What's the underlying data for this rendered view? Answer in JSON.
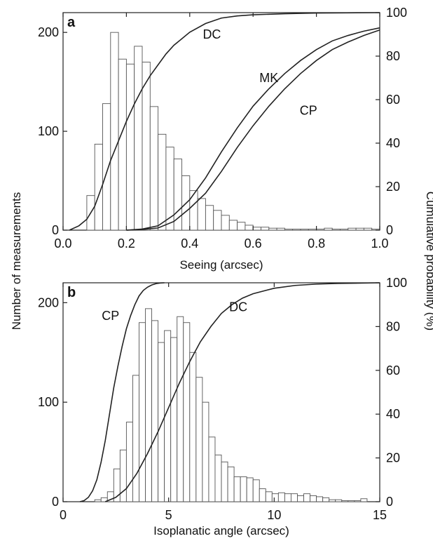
{
  "shared": {
    "left_axis_label": "Number of measurements",
    "right_axis_label": "Cumulative probability (%)"
  },
  "chart_data": [
    {
      "type": "bar",
      "panel": "a",
      "xlabel": "Seeing (arcsec)",
      "xlim": [
        0,
        1.0
      ],
      "ylim": [
        0,
        220
      ],
      "y2lim": [
        0,
        100
      ],
      "x_ticks": [
        "0.0",
        "0.2",
        "0.4",
        "0.6",
        "0.8",
        "1.0"
      ],
      "y_ticks": [
        "0",
        "100",
        "200"
      ],
      "y2_ticks": [
        "0",
        "20",
        "40",
        "60",
        "80",
        "100"
      ],
      "histogram": {
        "bin_start": 0.025,
        "bin_width": 0.025,
        "counts": [
          0,
          0,
          35,
          87,
          128,
          200,
          173,
          168,
          186,
          170,
          125,
          97,
          84,
          72,
          55,
          40,
          32,
          25,
          20,
          15,
          10,
          8,
          5,
          3,
          3,
          2,
          2,
          1,
          1,
          1,
          1,
          1,
          2,
          1,
          1,
          2,
          2,
          2,
          1
        ]
      },
      "series": [
        {
          "name": "DC",
          "x": [
            0.02,
            0.05,
            0.075,
            0.1,
            0.125,
            0.15,
            0.175,
            0.2,
            0.225,
            0.25,
            0.275,
            0.3,
            0.325,
            0.35,
            0.375,
            0.4,
            0.45,
            0.5,
            0.55,
            0.6,
            0.7,
            0.8,
            1.0
          ],
          "y": [
            0,
            2,
            5,
            11,
            21,
            32,
            41,
            50,
            58,
            65,
            71,
            76,
            81,
            85,
            88,
            91,
            95,
            97.5,
            98.5,
            99,
            99.5,
            99.8,
            100
          ]
        },
        {
          "name": "MK",
          "x": [
            0.2,
            0.25,
            0.3,
            0.35,
            0.4,
            0.45,
            0.5,
            0.55,
            0.6,
            0.65,
            0.7,
            0.75,
            0.8,
            0.85,
            0.9,
            0.95,
            1.0
          ],
          "y": [
            0,
            0.5,
            2,
            7,
            14,
            24,
            36,
            47,
            57,
            65,
            72,
            78,
            83,
            87,
            89.5,
            91.5,
            93
          ]
        },
        {
          "name": "CP",
          "x": [
            0.2,
            0.25,
            0.3,
            0.35,
            0.4,
            0.45,
            0.5,
            0.55,
            0.6,
            0.65,
            0.7,
            0.75,
            0.8,
            0.85,
            0.9,
            0.95,
            1.0
          ],
          "y": [
            0,
            0.3,
            1,
            4,
            10,
            17,
            27,
            38,
            48,
            57,
            65,
            72,
            78,
            83,
            86.5,
            89.5,
            92
          ]
        }
      ],
      "curve_labels": [
        {
          "text": "DC",
          "x": 0.47,
          "y": 90
        },
        {
          "text": "MK",
          "x": 0.65,
          "y": 70
        },
        {
          "text": "CP",
          "x": 0.775,
          "y": 55
        }
      ]
    },
    {
      "type": "bar",
      "panel": "b",
      "xlabel": "Isoplanatic angle (arcsec)",
      "xlim": [
        0,
        15
      ],
      "ylim": [
        0,
        220
      ],
      "y2lim": [
        0,
        100
      ],
      "x_ticks": [
        "0",
        "5",
        "10",
        "15"
      ],
      "y_ticks": [
        "0",
        "100",
        "200"
      ],
      "y2_ticks": [
        "0",
        "20",
        "40",
        "60",
        "80",
        "100"
      ],
      "histogram": {
        "bin_start": 1.5,
        "bin_width": 0.3,
        "counts": [
          2,
          4,
          10,
          33,
          52,
          80,
          127,
          180,
          194,
          182,
          160,
          172,
          165,
          186,
          180,
          150,
          125,
          100,
          65,
          47,
          40,
          35,
          25,
          25,
          24,
          22,
          13,
          10,
          8,
          9,
          8,
          8,
          6,
          8,
          6,
          5,
          4,
          2,
          2,
          1,
          1,
          1,
          3
        ]
      },
      "series": [
        {
          "name": "CP",
          "x": [
            0.8,
            1.0,
            1.2,
            1.4,
            1.6,
            1.8,
            2.0,
            2.2,
            2.4,
            2.6,
            2.8,
            3.0,
            3.2,
            3.4,
            3.6,
            3.8,
            4.0,
            4.2,
            4.4,
            4.6,
            4.8
          ],
          "y": [
            0,
            0.5,
            2,
            5,
            10,
            18,
            28,
            40,
            52,
            62,
            71,
            79,
            85,
            90,
            94,
            96.5,
            98,
            99,
            99.6,
            99.9,
            100
          ]
        },
        {
          "name": "DC",
          "x": [
            2.0,
            2.5,
            3.0,
            3.5,
            4.0,
            4.5,
            5.0,
            5.5,
            6.0,
            6.5,
            7.0,
            7.5,
            8.0,
            8.5,
            9.0,
            10.0,
            11.0,
            12.0,
            13.0,
            15.0
          ],
          "y": [
            0,
            2,
            6,
            13,
            22,
            32,
            43,
            54,
            64,
            73,
            80,
            86,
            90,
            93,
            95,
            97.5,
            98.8,
            99.4,
            99.7,
            100
          ]
        }
      ],
      "curve_labels": [
        {
          "text": "CP",
          "x": 2.25,
          "y": 85
        },
        {
          "text": "DC",
          "x": 8.3,
          "y": 89
        }
      ]
    }
  ]
}
